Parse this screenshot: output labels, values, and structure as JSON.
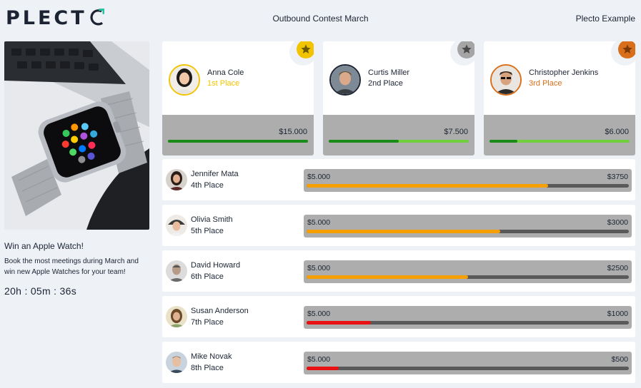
{
  "header": {
    "logo": "PLECTO",
    "title": "Outbound Contest March",
    "company": "Plecto Example"
  },
  "promo": {
    "title": "Win an Apple Watch!",
    "description": "Book the most meetings during March and win new Apple Watches for your team!",
    "countdown": "20h : 05m : 36s"
  },
  "colors": {
    "gold": "#f2c400",
    "silver": "#a5a5a5",
    "bronze": "#d96f1a",
    "progress_dark_green": "#1a8a18",
    "progress_light_green": "#6fcf3c",
    "progress_orange": "#f5a000",
    "progress_red": "#e81010"
  },
  "podium": [
    {
      "name": "Anna Cole",
      "place": "1st Place",
      "amount": "$15.000",
      "progress": 1.0,
      "medal_color": "#f2c400",
      "place_color": "#f2c400",
      "border_color": "#f2c400",
      "icon": "star-icon"
    },
    {
      "name": "Curtis Miller",
      "place": "2nd Place",
      "amount": "$7.500",
      "progress": 0.5,
      "medal_color": "#a5a5a5",
      "place_color": "#1c2433",
      "border_color": "#1c2433",
      "icon": "star-icon"
    },
    {
      "name": "Christopher Jenkins",
      "place": "3rd Place",
      "amount": "$6.000",
      "progress": 0.2,
      "medal_color": "#d96f1a",
      "place_color": "#d96f1a",
      "border_color": "#d96f1a",
      "icon": "star-icon"
    }
  ],
  "rows": [
    {
      "name": "Jennifer Mata",
      "place": "4th Place",
      "goal": "$5.000",
      "value": "$3750",
      "progress": 0.75,
      "color": "#f5a000"
    },
    {
      "name": "Olivia Smith",
      "place": "5th Place",
      "goal": "$5.000",
      "value": "$3000",
      "progress": 0.6,
      "color": "#f5a000"
    },
    {
      "name": "David Howard",
      "place": "6th Place",
      "goal": "$5.000",
      "value": "$2500",
      "progress": 0.5,
      "color": "#f5a000"
    },
    {
      "name": "Susan Anderson",
      "place": "7th Place",
      "goal": "$5.000",
      "value": "$1000",
      "progress": 0.2,
      "color": "#e81010"
    },
    {
      "name": "Mike Novak",
      "place": "8th Place",
      "goal": "$5.000",
      "value": "$500",
      "progress": 0.1,
      "color": "#e81010"
    }
  ]
}
